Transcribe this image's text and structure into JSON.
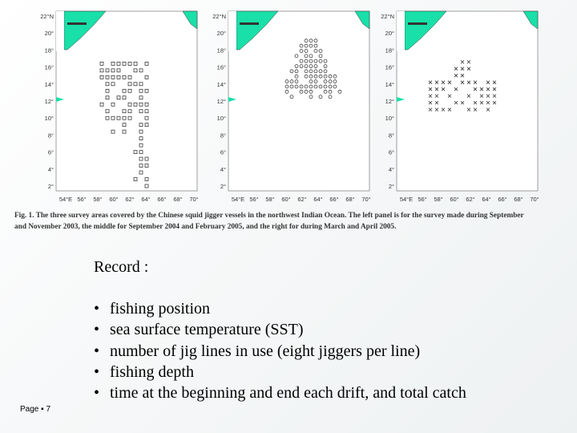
{
  "figure": {
    "panels": [
      {
        "yticks": [
          "22°N",
          "20°",
          "18°",
          "16°",
          "14°",
          "12°",
          "10°",
          "8°",
          "6°",
          "4°",
          "2°"
        ],
        "xticks": [
          "54°E",
          "56°",
          "58°",
          "60°",
          "62°",
          "64°",
          "66°",
          "68°",
          "70°"
        ]
      },
      {
        "yticks": [
          "22°N",
          "20°",
          "18°",
          "16°",
          "14°",
          "12°",
          "10°",
          "8°",
          "6°",
          "4°",
          "2°"
        ],
        "xticks": [
          "54°E",
          "56°",
          "58°",
          "60°",
          "62°",
          "64°",
          "66°",
          "68°",
          "70°"
        ]
      },
      {
        "yticks": [
          "22°N",
          "20°",
          "18°",
          "16°",
          "14°",
          "12°",
          "10°",
          "8°",
          "6°",
          "4°",
          "2°"
        ],
        "xticks": [
          "54°E",
          "56°",
          "58°",
          "60°",
          "62°",
          "64°",
          "66°",
          "68°",
          "70°"
        ]
      }
    ],
    "caption": [
      "Fig. 1. The three survey areas covered by the Chinese squid jigger vessels in the northwest Indian Ocean. The left panel is for the survey made during September",
      "and November 2003, the middle for September 2004 and February 2005, and the right for during March and April 2005."
    ]
  },
  "record": {
    "title": "Record :",
    "items": [
      "fishing position",
      "sea surface temperature (SST)",
      "number of jig lines in use (eight jiggers per line)",
      "fishing depth",
      "time at the beginning and  end each drift, and total catch"
    ]
  },
  "footer": {
    "page": "Page ▪ 7"
  }
}
